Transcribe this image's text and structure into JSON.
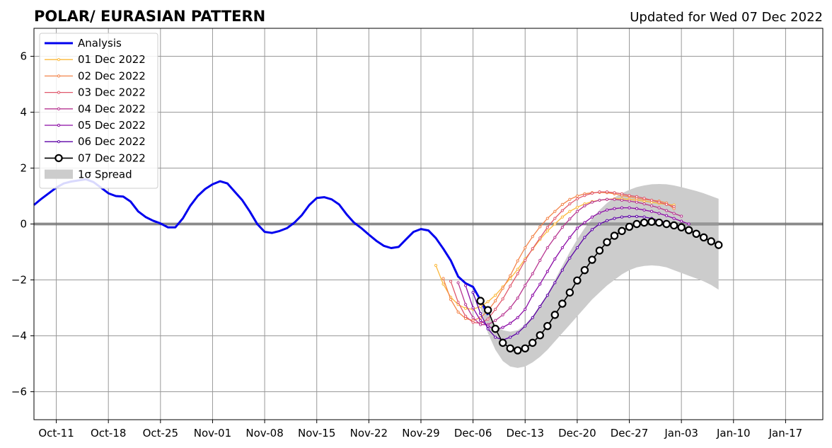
{
  "chart_data": {
    "type": "line",
    "title": "POLAR/ EURASIAN  PATTERN",
    "subtitle": "Updated for Wed 07 Dec 2022",
    "xlabel": "",
    "ylabel": "",
    "x_range": [
      "2022-10-08",
      "2023-01-22"
    ],
    "ylim": [
      -7,
      7
    ],
    "grid": true,
    "legend_position": "top-left",
    "x_ticks": [
      {
        "date": "2022-10-11",
        "label": "Oct-11"
      },
      {
        "date": "2022-10-18",
        "label": "Oct-18"
      },
      {
        "date": "2022-10-25",
        "label": "Oct-25"
      },
      {
        "date": "2022-11-01",
        "label": "Nov-01"
      },
      {
        "date": "2022-11-08",
        "label": "Nov-08"
      },
      {
        "date": "2022-11-15",
        "label": "Nov-15"
      },
      {
        "date": "2022-11-22",
        "label": "Nov-22"
      },
      {
        "date": "2022-11-29",
        "label": "Nov-29"
      },
      {
        "date": "2022-12-06",
        "label": "Dec-06"
      },
      {
        "date": "2022-12-13",
        "label": "Dec-13"
      },
      {
        "date": "2022-12-20",
        "label": "Dec-20"
      },
      {
        "date": "2022-12-27",
        "label": "Dec-27"
      },
      {
        "date": "2023-01-03",
        "label": "Jan-03"
      },
      {
        "date": "2023-01-10",
        "label": "Jan-10"
      },
      {
        "date": "2023-01-17",
        "label": "Jan-17"
      }
    ],
    "y_ticks": [
      {
        "value": 6,
        "label": "6"
      },
      {
        "value": 4,
        "label": "4"
      },
      {
        "value": 2,
        "label": "2"
      },
      {
        "value": 0,
        "label": "0"
      },
      {
        "value": -2,
        "label": "−2"
      },
      {
        "value": -4,
        "label": "−4"
      },
      {
        "value": -6,
        "label": "−6"
      }
    ],
    "legend": [
      {
        "key": "analysis",
        "label": "Analysis"
      },
      {
        "key": "f01",
        "label": "01 Dec 2022"
      },
      {
        "key": "f02",
        "label": "02 Dec 2022"
      },
      {
        "key": "f03",
        "label": "03 Dec 2022"
      },
      {
        "key": "f04",
        "label": "04 Dec 2022"
      },
      {
        "key": "f05",
        "label": "05 Dec 2022"
      },
      {
        "key": "f06",
        "label": "06 Dec 2022"
      },
      {
        "key": "f07",
        "label": "07 Dec 2022"
      },
      {
        "key": "spread",
        "label": "1σ Spread"
      }
    ],
    "colors": {
      "analysis": "#0000ee",
      "f01": "#fbb83a",
      "f02": "#f3854b",
      "f03": "#e0586c",
      "f04": "#b73490",
      "f05": "#8b0aa5",
      "f06": "#5c01a6",
      "f07": "#000000",
      "spread": "#cccccc",
      "grid": "#999999",
      "zero_line": "#555555"
    },
    "analysis": {
      "start": "2022-10-08",
      "values": [
        0.68,
        0.9,
        1.1,
        1.3,
        1.45,
        1.52,
        1.56,
        1.6,
        1.5,
        1.3,
        1.1,
        1.0,
        0.98,
        0.8,
        0.45,
        0.25,
        0.12,
        0.02,
        -0.12,
        -0.12,
        0.2,
        0.65,
        1.0,
        1.25,
        1.42,
        1.53,
        1.45,
        1.15,
        0.85,
        0.45,
        0.0,
        -0.28,
        -0.32,
        -0.25,
        -0.15,
        0.05,
        0.32,
        0.68,
        0.93,
        0.96,
        0.88,
        0.7,
        0.35,
        0.05,
        -0.15,
        -0.38,
        -0.6,
        -0.78,
        -0.86,
        -0.82,
        -0.55,
        -0.28,
        -0.18,
        -0.23,
        -0.5,
        -0.88,
        -1.3,
        -1.88,
        -2.12,
        -2.25,
        -2.72,
        -3.25
      ]
    },
    "forecasts": [
      {
        "key": "f01",
        "start": "2022-12-01",
        "values": [
          -1.48,
          -2.15,
          -2.62,
          -2.88,
          -3.02,
          -3.05,
          -2.95,
          -2.78,
          -2.55,
          -2.25,
          -1.95,
          -1.62,
          -1.25,
          -0.9,
          -0.55,
          -0.25,
          0.0,
          0.25,
          0.45,
          0.6,
          0.72,
          0.8,
          0.85,
          0.88,
          0.9,
          0.9,
          0.88,
          0.85,
          0.82,
          0.78,
          0.74,
          0.7,
          0.68
        ]
      },
      {
        "key": "f02",
        "start": "2022-12-02",
        "values": [
          -1.95,
          -2.7,
          -3.15,
          -3.38,
          -3.45,
          -3.35,
          -3.1,
          -2.75,
          -2.3,
          -1.85,
          -1.32,
          -0.85,
          -0.45,
          -0.1,
          0.2,
          0.45,
          0.7,
          0.88,
          1.0,
          1.08,
          1.12,
          1.13,
          1.12,
          1.08,
          1.02,
          0.98,
          0.92,
          0.88,
          0.85,
          0.82,
          0.75,
          0.55
        ]
      },
      {
        "key": "f03",
        "start": "2022-12-03",
        "values": [
          -2.05,
          -2.8,
          -3.3,
          -3.52,
          -3.55,
          -3.4,
          -3.05,
          -2.68,
          -2.22,
          -1.78,
          -1.3,
          -0.88,
          -0.5,
          -0.12,
          0.2,
          0.48,
          0.72,
          0.9,
          1.02,
          1.1,
          1.15,
          1.15,
          1.12,
          1.08,
          1.02,
          0.98,
          0.92,
          0.85,
          0.78,
          0.7,
          0.62
        ]
      },
      {
        "key": "f04",
        "start": "2022-12-04",
        "values": [
          -2.1,
          -2.88,
          -3.35,
          -3.6,
          -3.6,
          -3.45,
          -3.25,
          -3.0,
          -2.65,
          -2.2,
          -1.78,
          -1.3,
          -0.85,
          -0.48,
          -0.12,
          0.18,
          0.45,
          0.65,
          0.78,
          0.85,
          0.88,
          0.88,
          0.85,
          0.82,
          0.78,
          0.72,
          0.65,
          0.58,
          0.48,
          0.38,
          0.28
        ]
      },
      {
        "key": "f05",
        "start": "2022-12-05",
        "values": [
          -2.2,
          -3.0,
          -3.45,
          -3.65,
          -3.78,
          -3.7,
          -3.55,
          -3.35,
          -3.05,
          -2.55,
          -2.15,
          -1.7,
          -1.25,
          -0.85,
          -0.48,
          -0.15,
          0.05,
          0.25,
          0.4,
          0.5,
          0.55,
          0.58,
          0.58,
          0.55,
          0.5,
          0.45,
          0.38,
          0.3,
          0.2,
          0.1,
          0.0
        ]
      },
      {
        "key": "f06",
        "start": "2022-12-06",
        "values": [
          -2.45,
          -3.2,
          -3.75,
          -4.05,
          -4.15,
          -4.05,
          -3.9,
          -3.65,
          -3.35,
          -2.95,
          -2.55,
          -2.1,
          -1.65,
          -1.22,
          -0.85,
          -0.48,
          -0.2,
          0.0,
          0.12,
          0.2,
          0.25,
          0.27,
          0.27,
          0.25,
          0.2,
          0.12,
          0.05,
          -0.05,
          -0.12
        ]
      },
      {
        "key": "f07",
        "start": "2022-12-07",
        "values": [
          -2.75,
          -3.08,
          -3.75,
          -4.25,
          -4.45,
          -4.52,
          -4.45,
          -4.25,
          -3.98,
          -3.65,
          -3.25,
          -2.85,
          -2.45,
          -2.02,
          -1.65,
          -1.28,
          -0.95,
          -0.65,
          -0.42,
          -0.25,
          -0.1,
          0.0,
          0.05,
          0.08,
          0.05,
          0.0,
          -0.05,
          -0.12,
          -0.22,
          -0.35,
          -0.48,
          -0.62,
          -0.75
        ]
      }
    ],
    "spread": {
      "start": "2022-12-07",
      "upper": [
        -2.7,
        -3.2,
        -3.6,
        -3.8,
        -3.85,
        -3.8,
        -3.6,
        -3.3,
        -2.9,
        -2.5,
        -2.0,
        -1.5,
        -1.0,
        -0.55,
        -0.15,
        0.2,
        0.5,
        0.75,
        0.95,
        1.1,
        1.22,
        1.32,
        1.38,
        1.42,
        1.43,
        1.42,
        1.38,
        1.32,
        1.25,
        1.18,
        1.1,
        1.0,
        0.9
      ],
      "lower": [
        -3.0,
        -3.9,
        -4.5,
        -4.9,
        -5.1,
        -5.15,
        -5.1,
        -4.95,
        -4.75,
        -4.5,
        -4.2,
        -3.9,
        -3.6,
        -3.3,
        -3.0,
        -2.7,
        -2.45,
        -2.2,
        -2.0,
        -1.8,
        -1.65,
        -1.55,
        -1.5,
        -1.48,
        -1.5,
        -1.55,
        -1.65,
        -1.75,
        -1.85,
        -1.95,
        -2.05,
        -2.18,
        -2.35
      ]
    }
  }
}
